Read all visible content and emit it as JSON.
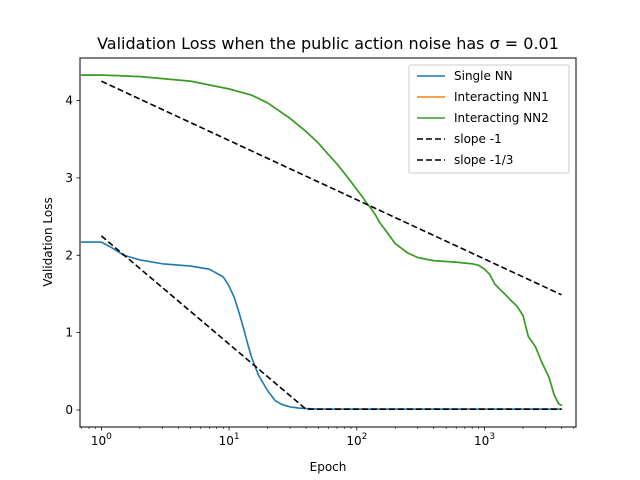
{
  "chart_data": {
    "type": "line",
    "title": "Validation Loss when the public action noise has σ = 0.01",
    "xlabel": "Epoch",
    "ylabel": "Validation Loss",
    "xscale": "log",
    "xlim": [
      0.68,
      5200
    ],
    "ylim": [
      -0.22,
      4.55
    ],
    "x_ticks": [
      1,
      10,
      100,
      1000
    ],
    "x_tick_labels": [
      "10",
      "10",
      "10",
      "10"
    ],
    "x_tick_exponents": [
      "0",
      "1",
      "2",
      "3"
    ],
    "y_ticks": [
      0,
      1,
      2,
      3,
      4
    ],
    "y_tick_labels": [
      "0",
      "1",
      "2",
      "3",
      "4"
    ],
    "grid": false,
    "legend_position": "top-right",
    "series": [
      {
        "name": "Single NN",
        "color": "#1f77b4",
        "style": "solid",
        "x": [
          0.7,
          1,
          1.2,
          1.5,
          2,
          3,
          5,
          7,
          9,
          10,
          11,
          12,
          13,
          14,
          15,
          17,
          20,
          23,
          26,
          30,
          35,
          40,
          50,
          100,
          1000,
          4000
        ],
        "y": [
          2.17,
          2.17,
          2.1,
          2.0,
          1.94,
          1.89,
          1.86,
          1.82,
          1.72,
          1.6,
          1.45,
          1.25,
          1.05,
          0.85,
          0.68,
          0.45,
          0.25,
          0.12,
          0.07,
          0.04,
          0.025,
          0.018,
          0.012,
          0.012,
          0.012,
          0.012
        ]
      },
      {
        "name": "Interacting NN1",
        "color": "#ff7f0e",
        "style": "solid",
        "x": [
          0.7,
          1,
          2,
          5,
          10,
          15,
          20,
          30,
          40,
          50,
          60,
          70,
          80,
          90,
          100,
          110,
          120,
          130,
          140,
          150,
          170,
          200,
          250,
          300,
          400,
          600,
          800,
          900,
          1000,
          1100,
          1200,
          1300,
          1400,
          1600,
          1800,
          2000,
          2200,
          2500,
          2800,
          3200,
          3500,
          3800,
          4000
        ],
        "y": [
          4.33,
          4.33,
          4.31,
          4.25,
          4.15,
          4.07,
          3.97,
          3.77,
          3.6,
          3.45,
          3.3,
          3.18,
          3.06,
          2.95,
          2.85,
          2.76,
          2.67,
          2.6,
          2.52,
          2.43,
          2.31,
          2.15,
          2.03,
          1.97,
          1.93,
          1.91,
          1.89,
          1.87,
          1.82,
          1.75,
          1.63,
          1.57,
          1.52,
          1.42,
          1.34,
          1.22,
          0.95,
          0.82,
          0.62,
          0.42,
          0.2,
          0.08,
          0.06
        ]
      },
      {
        "name": "Interacting NN2",
        "color": "#2ca02c",
        "style": "solid",
        "x": [
          0.7,
          1,
          2,
          5,
          10,
          15,
          20,
          30,
          40,
          50,
          60,
          70,
          80,
          90,
          100,
          110,
          120,
          130,
          140,
          150,
          170,
          200,
          250,
          300,
          400,
          600,
          800,
          900,
          1000,
          1100,
          1200,
          1300,
          1400,
          1600,
          1800,
          2000,
          2200,
          2500,
          2800,
          3200,
          3500,
          3800,
          4000
        ],
        "y": [
          4.33,
          4.33,
          4.31,
          4.25,
          4.15,
          4.07,
          3.97,
          3.77,
          3.6,
          3.45,
          3.3,
          3.18,
          3.06,
          2.95,
          2.85,
          2.76,
          2.67,
          2.6,
          2.52,
          2.43,
          2.31,
          2.15,
          2.03,
          1.97,
          1.93,
          1.91,
          1.89,
          1.87,
          1.82,
          1.75,
          1.63,
          1.57,
          1.52,
          1.42,
          1.34,
          1.22,
          0.95,
          0.82,
          0.62,
          0.42,
          0.2,
          0.08,
          0.06
        ]
      },
      {
        "name": "slope -1",
        "color": "#000000",
        "style": "dashed",
        "x": [
          1,
          40,
          4000
        ],
        "y": [
          2.25,
          0.01,
          0.01
        ]
      },
      {
        "name": "slope -1/3",
        "color": "#000000",
        "style": "dashed",
        "x": [
          1,
          4000
        ],
        "y": [
          4.25,
          1.49
        ]
      }
    ]
  }
}
